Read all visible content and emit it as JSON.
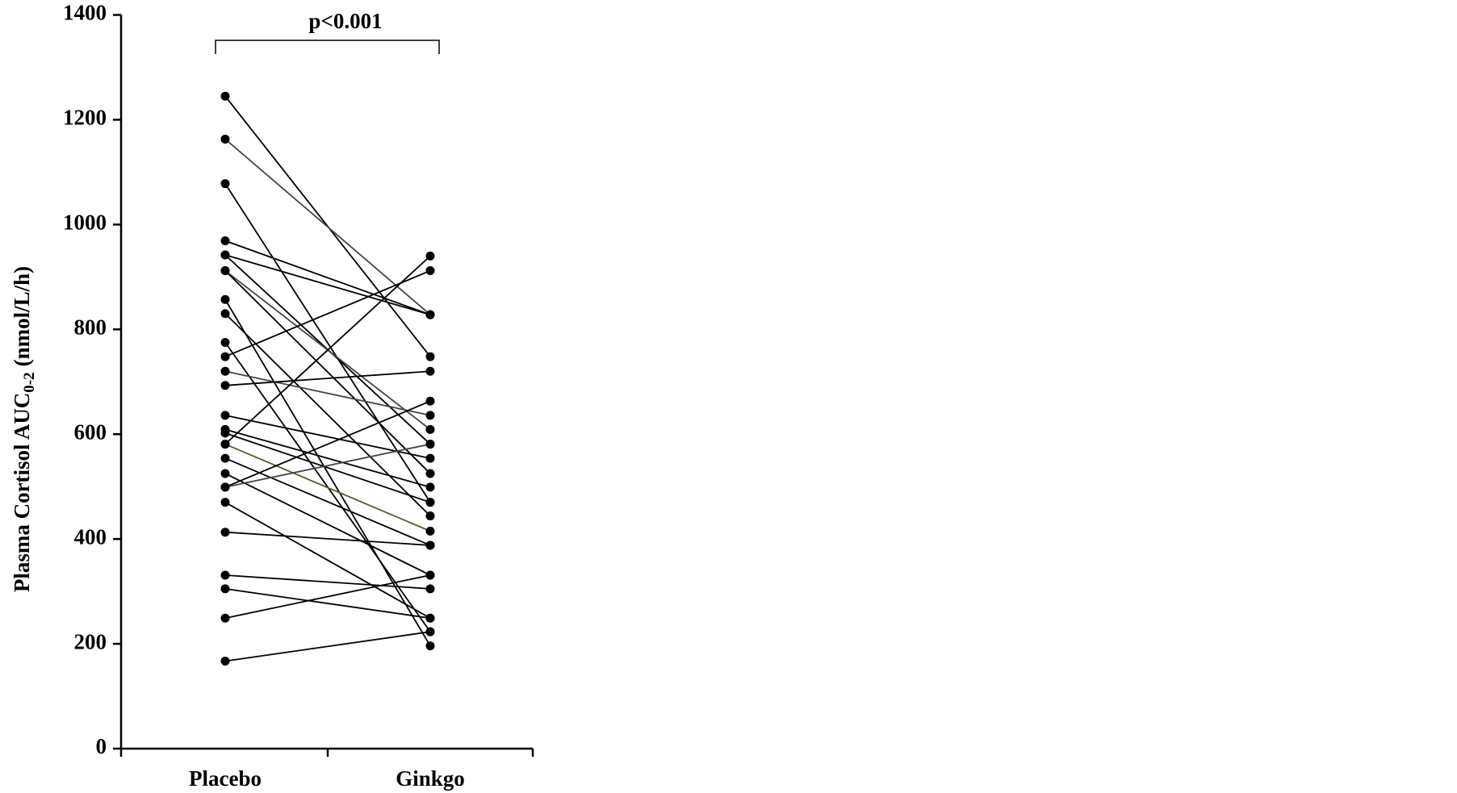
{
  "chart_data": {
    "type": "paired-line",
    "annotation": "p<0.001",
    "y_label": "Plasma Cortisol AUC",
    "y_label_subscript": "0-2",
    "y_label_unit": "(nmol/L/h)",
    "categories": [
      "Placebo",
      "Ginkgo"
    ],
    "ylim": [
      0,
      1400
    ],
    "yticks": [
      0,
      200,
      400,
      600,
      800,
      1000,
      1200,
      1400
    ],
    "series": [
      {
        "color": "#000000",
        "values": [
          1245,
          748
        ]
      },
      {
        "color": "#444444",
        "values": [
          1163,
          828
        ]
      },
      {
        "color": "#000000",
        "values": [
          1078,
          470
        ]
      },
      {
        "color": "#000000",
        "values": [
          969,
          828
        ]
      },
      {
        "color": "#000000",
        "values": [
          942,
          828
        ]
      },
      {
        "color": "#000000",
        "values": [
          942,
          581
        ]
      },
      {
        "color": "#444444",
        "values": [
          912,
          609
        ]
      },
      {
        "color": "#000000",
        "values": [
          912,
          525
        ]
      },
      {
        "color": "#000000",
        "values": [
          857,
          196
        ]
      },
      {
        "color": "#000000",
        "values": [
          830,
          444
        ]
      },
      {
        "color": "#000000",
        "values": [
          775,
          223
        ]
      },
      {
        "color": "#000000",
        "values": [
          748,
          912
        ]
      },
      {
        "color": "#444444",
        "values": [
          720,
          636
        ]
      },
      {
        "color": "#000000",
        "values": [
          693,
          720
        ]
      },
      {
        "color": "#000000",
        "values": [
          636,
          554
        ]
      },
      {
        "color": "#000000",
        "values": [
          609,
          499
        ]
      },
      {
        "color": "#000000",
        "values": [
          602,
          470
        ]
      },
      {
        "color": "#5a5a2a",
        "values": [
          581,
          415
        ]
      },
      {
        "color": "#000000",
        "values": [
          581,
          940
        ]
      },
      {
        "color": "#000000",
        "values": [
          554,
          388
        ]
      },
      {
        "color": "#000000",
        "values": [
          525,
          331
        ]
      },
      {
        "color": "#000000",
        "values": [
          499,
          663
        ]
      },
      {
        "color": "#444444",
        "values": [
          499,
          581
        ]
      },
      {
        "color": "#000000",
        "values": [
          470,
          249
        ]
      },
      {
        "color": "#000000",
        "values": [
          413,
          388
        ]
      },
      {
        "color": "#000000",
        "values": [
          331,
          305
        ]
      },
      {
        "color": "#000000",
        "values": [
          305,
          249
        ]
      },
      {
        "color": "#000000",
        "values": [
          249,
          331
        ]
      },
      {
        "color": "#000000",
        "values": [
          167,
          223
        ]
      }
    ]
  }
}
